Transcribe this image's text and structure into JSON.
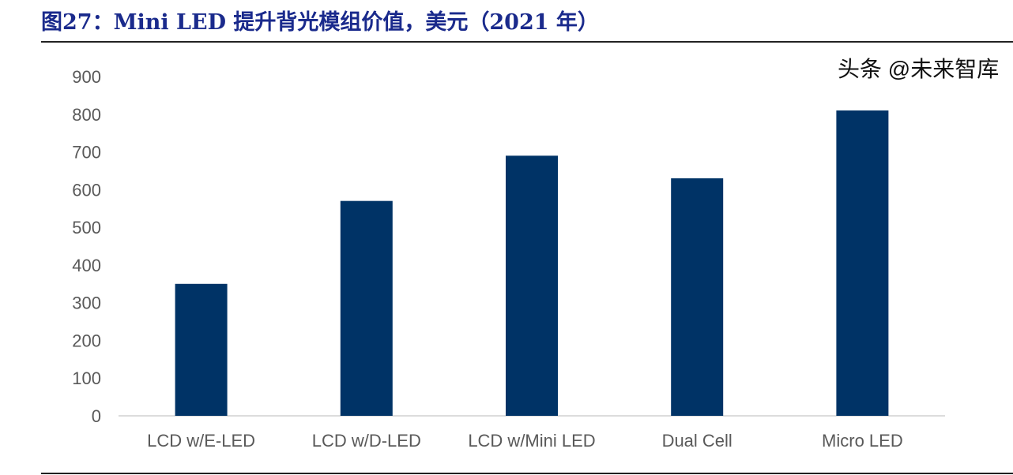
{
  "title": "图27：Mini LED 提升背光模组价值，美元（2021 年）",
  "watermark": "头条 @未来智库",
  "chart_data": {
    "type": "bar",
    "categories": [
      "LCD w/E-LED",
      "LCD w/D-LED",
      "LCD w/Mini LED",
      "Dual Cell",
      "Micro LED"
    ],
    "values": [
      350,
      570,
      690,
      630,
      810
    ],
    "ylim": [
      0,
      900
    ],
    "yticks": [
      0,
      100,
      200,
      300,
      400,
      500,
      600,
      700,
      800,
      900
    ],
    "grid": false,
    "bar_color": "#003366",
    "title_color": "#1a2a8c"
  }
}
